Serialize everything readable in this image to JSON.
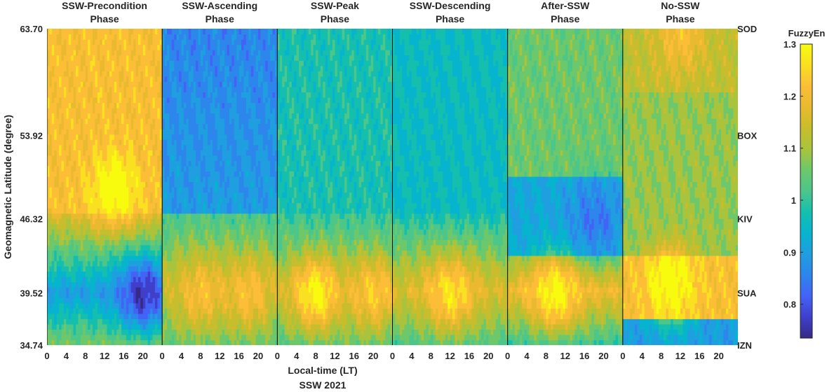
{
  "chart_data": {
    "type": "heatmap",
    "subtype": "filled-contour",
    "colormap": "parula",
    "xlabel": "Local-time (LT)",
    "subtitle": "SSW 2021",
    "ylabel": "Geomagnetic Latitude (degree)",
    "ylim": [
      34.74,
      63.7
    ],
    "y_ticks": [
      "63.70",
      "53.92",
      "46.32",
      "39.52",
      "34.74"
    ],
    "y_tick_values": [
      63.7,
      53.92,
      46.32,
      39.52,
      34.74
    ],
    "stations": [
      {
        "name": "SOD",
        "lat": 63.7
      },
      {
        "name": "BOX",
        "lat": 53.92
      },
      {
        "name": "KIV",
        "lat": 46.32
      },
      {
        "name": "SUA",
        "lat": 39.52
      },
      {
        "name": "IZN",
        "lat": 34.74
      }
    ],
    "x_range_per_panel": [
      0,
      24
    ],
    "x_ticks": [
      "0",
      "4",
      "8",
      "12",
      "16",
      "20"
    ],
    "x_tick_values": [
      0,
      4,
      8,
      12,
      16,
      20
    ],
    "panels": [
      {
        "title_line1": "SSW-Precondition",
        "title_line2": "Phase",
        "description": "high FuzzyEn (~1.2-1.3) at high latitudes, low (~0.8) near SUA",
        "peaks": [
          {
            "lt": 14,
            "lat": 49,
            "value": 1.3
          },
          {
            "lt": 20,
            "lat": 39.5,
            "value": 0.78
          }
        ]
      },
      {
        "title_line1": "SSW-Ascending",
        "title_line2": "Phase",
        "description": "low (~0.85-0.9) at high latitudes, ~1.2 near SUA",
        "peaks": [
          {
            "lt": 8,
            "lat": 39.5,
            "value": 1.2
          },
          {
            "lt": 18,
            "lat": 39.5,
            "value": 1.2
          }
        ]
      },
      {
        "title_line1": "SSW-Peak",
        "title_line2": "Phase",
        "description": "maxima near SUA at ~8 LT and ~20 LT",
        "peaks": [
          {
            "lt": 8,
            "lat": 39.5,
            "value": 1.28
          },
          {
            "lt": 20,
            "lat": 39.5,
            "value": 1.22
          }
        ]
      },
      {
        "title_line1": "SSW-Descending",
        "title_line2": "Phase",
        "description": "band of ~1.2 near SUA across the day",
        "peaks": [
          {
            "lt": 12,
            "lat": 39.5,
            "value": 1.25
          }
        ]
      },
      {
        "title_line1": "After-SSW",
        "title_line2": "Phase",
        "description": "~1.28 near SUA, ~0.85 near KIV",
        "peaks": [
          {
            "lt": 10,
            "lat": 39.5,
            "value": 1.28
          },
          {
            "lt": 18,
            "lat": 46.3,
            "value": 0.85
          }
        ]
      },
      {
        "title_line1": "No-SSW",
        "title_line2": "Phase",
        "description": "~1.3 near SUA, ~1.2 near SOD, low near IZN",
        "peaks": [
          {
            "lt": 10,
            "lat": 40.5,
            "value": 1.3
          },
          {
            "lt": 12,
            "lat": 63,
            "value": 1.2
          }
        ]
      }
    ],
    "colorbar": {
      "label": "FuzzyEn",
      "range": [
        0.735,
        1.3
      ],
      "ticks": [
        "1.3",
        "1.2",
        "1.1",
        "1",
        "0.9",
        "0.8"
      ],
      "tick_values": [
        1.3,
        1.2,
        1.1,
        1.0,
        0.9,
        0.8
      ]
    },
    "grid": false
  },
  "colors": {
    "parula": [
      "#352a87",
      "#3f3fca",
      "#4363f6",
      "#2c86eb",
      "#1f9ee0",
      "#07b4ce",
      "#14bfae",
      "#4cc689",
      "#6cc86b",
      "#a9c43c",
      "#c8bd2c",
      "#e9ba2f",
      "#fbbe36",
      "#f9e021",
      "#f9fb0e"
    ]
  }
}
